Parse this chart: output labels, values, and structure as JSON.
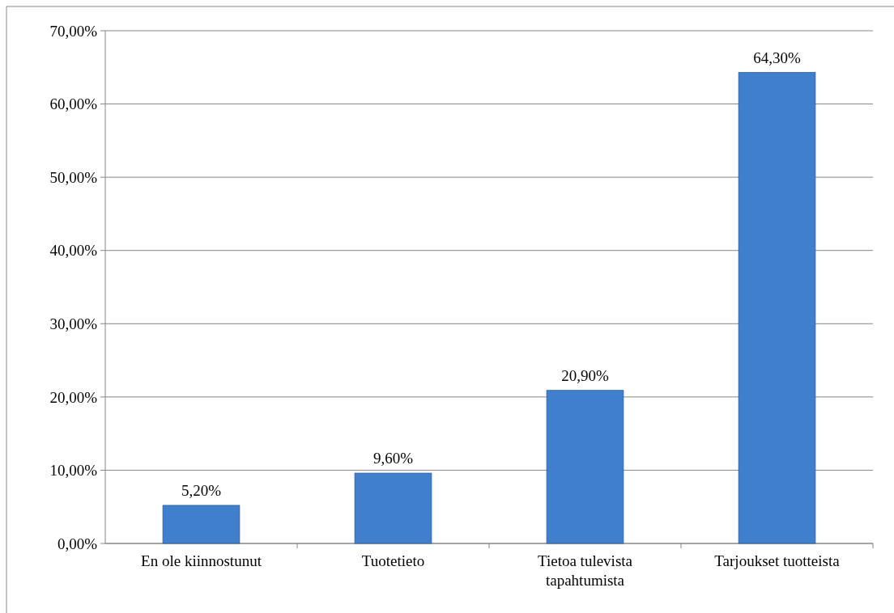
{
  "chart_data": {
    "type": "bar",
    "categories": [
      "En ole kiinnostunut",
      "Tuotetieto",
      "Tietoa tulevista tapahtumista",
      "Tarjoukset tuotteista"
    ],
    "values": [
      5.2,
      9.6,
      20.9,
      64.3
    ],
    "value_labels": [
      "5,20%",
      "9,60%",
      "20,90%",
      "64,30%"
    ],
    "color": "#3f7fcc",
    "ylim": [
      0,
      70
    ],
    "yticks": [
      {
        "value": 0,
        "label": "0,00%"
      },
      {
        "value": 10,
        "label": "10,00%"
      },
      {
        "value": 20,
        "label": "20,00%"
      },
      {
        "value": 30,
        "label": "30,00%"
      },
      {
        "value": 40,
        "label": "40,00%"
      },
      {
        "value": 50,
        "label": "50,00%"
      },
      {
        "value": 60,
        "label": "60,00%"
      },
      {
        "value": 70,
        "label": "70,00%"
      }
    ],
    "grid": "y"
  }
}
